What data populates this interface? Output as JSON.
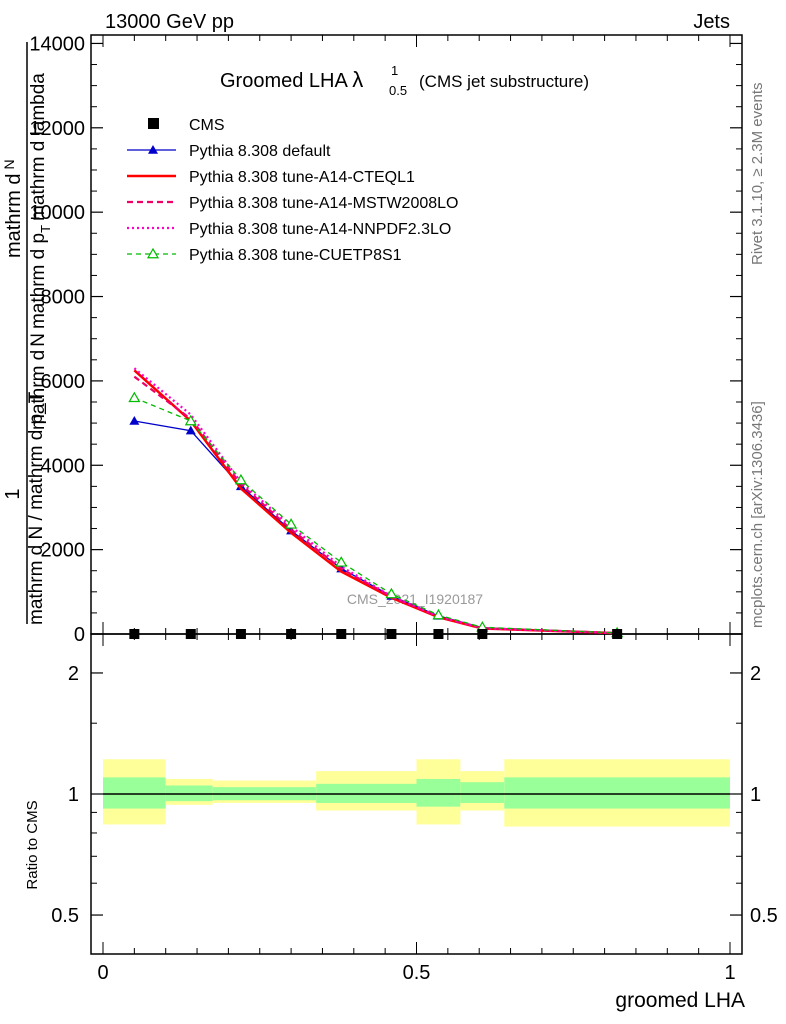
{
  "header": {
    "beam": "13000 GeV pp",
    "category": "Jets"
  },
  "side": {
    "rivet": "Rivet 3.1.10, ≥ 2.3M events",
    "mcplots": "mcplots.cern.ch [arXiv:1306.3436]"
  },
  "title": {
    "main": "Groomed LHA",
    "lambda": "λ",
    "sup": "1",
    "sub": "0.5",
    "note": "(CMS jet substructure)"
  },
  "watermark": "CMS_2021_I1920187",
  "ylabel_main": {
    "one": "1",
    "num": "mathrm d N / mathrm d p_T",
    "den_a": "mathrm d",
    "den_b": "N",
    "den_c": "mathrm d p",
    "den_d": "T",
    "den_e": "mathrm d lambda",
    "top_a": "mathrm d",
    "top_b": "N"
  },
  "ylabel_ratio": "Ratio to CMS",
  "xlabel": "groomed LHA",
  "colors": {
    "cms": "#000000",
    "default": "#0000cc",
    "a14cteql": "#ff0000",
    "a14mstw": "#ee0066",
    "a14nnpdf": "#ff00cc",
    "cuetp8s1": "#00bb00",
    "band_inner": "#99ff99",
    "band_outer": "#ffff99"
  },
  "chart_data": [
    {
      "type": "line",
      "xlim": [
        -0.02,
        1.02
      ],
      "ylim": [
        0,
        14200
      ],
      "yticks": [
        0,
        2000,
        4000,
        6000,
        8000,
        10000,
        12000,
        14000
      ],
      "yticklabels": [
        "0",
        "2000",
        "4000",
        "6000",
        "8000",
        "10000",
        "12000",
        "14000"
      ],
      "legend_position": "top-left",
      "x": [
        0.05,
        0.14,
        0.22,
        0.3,
        0.38,
        0.46,
        0.535,
        0.605,
        0.82
      ],
      "series": [
        {
          "name": "CMS",
          "style": "square",
          "values": [
            0,
            0,
            0,
            0,
            0,
            0,
            0,
            0,
            0
          ]
        },
        {
          "name": "Pythia 8.308 default",
          "style": "tri-filled",
          "values": [
            5050,
            4820,
            3500,
            2450,
            1550,
            900,
            430,
            150,
            25
          ]
        },
        {
          "name": "Pythia 8.308 tune-A14-CTEQL1",
          "style": "solid",
          "values": [
            6250,
            5050,
            3450,
            2400,
            1480,
            860,
            400,
            130,
            20
          ]
        },
        {
          "name": "Pythia 8.308 tune-A14-MSTW2008LO",
          "style": "dashed",
          "values": [
            6100,
            5100,
            3550,
            2480,
            1550,
            880,
            410,
            135,
            22
          ]
        },
        {
          "name": "Pythia 8.308 tune-A14-NNPDF2.3LO",
          "style": "dotted",
          "values": [
            6300,
            5200,
            3600,
            2550,
            1600,
            900,
            420,
            140,
            22
          ]
        },
        {
          "name": "Pythia 8.308 tune-CUETP8S1",
          "style": "dashed-open-tri",
          "values": [
            5600,
            5050,
            3650,
            2600,
            1700,
            950,
            450,
            160,
            25
          ]
        }
      ]
    },
    {
      "type": "area",
      "ylabel": "Ratio to CMS",
      "xlabel": "groomed LHA",
      "ylog": true,
      "ylim": [
        0.4,
        2.5
      ],
      "yticks": [
        0.5,
        1,
        2
      ],
      "yticklabels": [
        "0.5",
        "1",
        "2"
      ],
      "xticks": [
        0,
        0.5,
        1
      ],
      "xticklabels": [
        "0",
        "0.5",
        "1"
      ],
      "reference": 1,
      "bins": [
        {
          "lo": 0.0,
          "hi": 0.1,
          "inner": [
            0.92,
            1.1
          ],
          "outer": [
            0.84,
            1.22
          ]
        },
        {
          "lo": 0.1,
          "hi": 0.175,
          "inner": [
            0.96,
            1.05
          ],
          "outer": [
            0.94,
            1.09
          ]
        },
        {
          "lo": 0.175,
          "hi": 0.34,
          "inner": [
            0.965,
            1.04
          ],
          "outer": [
            0.95,
            1.08
          ]
        },
        {
          "lo": 0.34,
          "hi": 0.5,
          "inner": [
            0.95,
            1.06
          ],
          "outer": [
            0.91,
            1.14
          ]
        },
        {
          "lo": 0.5,
          "hi": 0.57,
          "inner": [
            0.93,
            1.09
          ],
          "outer": [
            0.84,
            1.22
          ]
        },
        {
          "lo": 0.57,
          "hi": 0.64,
          "inner": [
            0.95,
            1.07
          ],
          "outer": [
            0.91,
            1.14
          ]
        },
        {
          "lo": 0.64,
          "hi": 1.0,
          "inner": [
            0.92,
            1.1
          ],
          "outer": [
            0.83,
            1.22
          ]
        }
      ]
    }
  ]
}
